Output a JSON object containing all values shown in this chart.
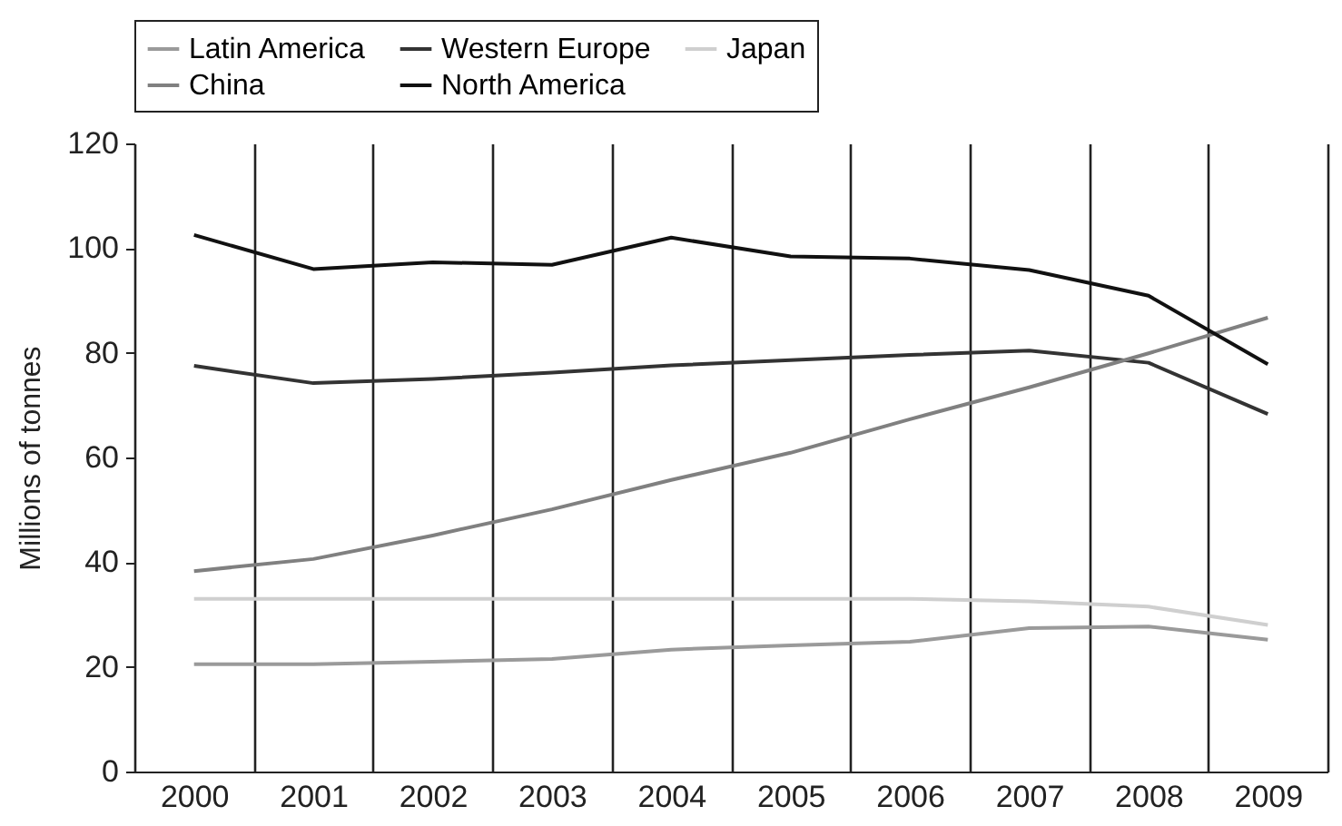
{
  "chart_data": {
    "type": "line",
    "ylabel": "Millions of tonnes",
    "categories": [
      "2000",
      "2001",
      "2002",
      "2003",
      "2004",
      "2005",
      "2006",
      "2007",
      "2008",
      "2009"
    ],
    "series": [
      {
        "name": "Latin America",
        "color": "#9a9a9a",
        "values": [
          20.5,
          20.5,
          21,
          21.5,
          23.3,
          24.1,
          24.8,
          27.4,
          27.7,
          25.2
        ]
      },
      {
        "name": "Western Europe",
        "color": "#333333",
        "values": [
          77.5,
          74.2,
          75,
          76.2,
          77.6,
          78.6,
          79.6,
          80.4,
          78.1,
          68.3
        ]
      },
      {
        "name": "Japan",
        "color": "#cfcfcf",
        "values": [
          33,
          33,
          33,
          33,
          33,
          33,
          33,
          32.5,
          31.5,
          28
        ]
      },
      {
        "name": "China",
        "color": "#808080",
        "values": [
          38.3,
          40.6,
          45.1,
          50.1,
          55.7,
          60.9,
          67.3,
          73.4,
          79.9,
          86.7
        ]
      },
      {
        "name": "North America",
        "color": "#111111",
        "values": [
          102.5,
          96,
          97.3,
          96.8,
          102,
          98.4,
          98,
          95.8,
          90.9,
          77.8
        ]
      }
    ],
    "ylim": [
      0,
      120
    ],
    "yticks": [
      0,
      20,
      40,
      60,
      80,
      100,
      120
    ],
    "grid": "x",
    "legend": "top"
  }
}
